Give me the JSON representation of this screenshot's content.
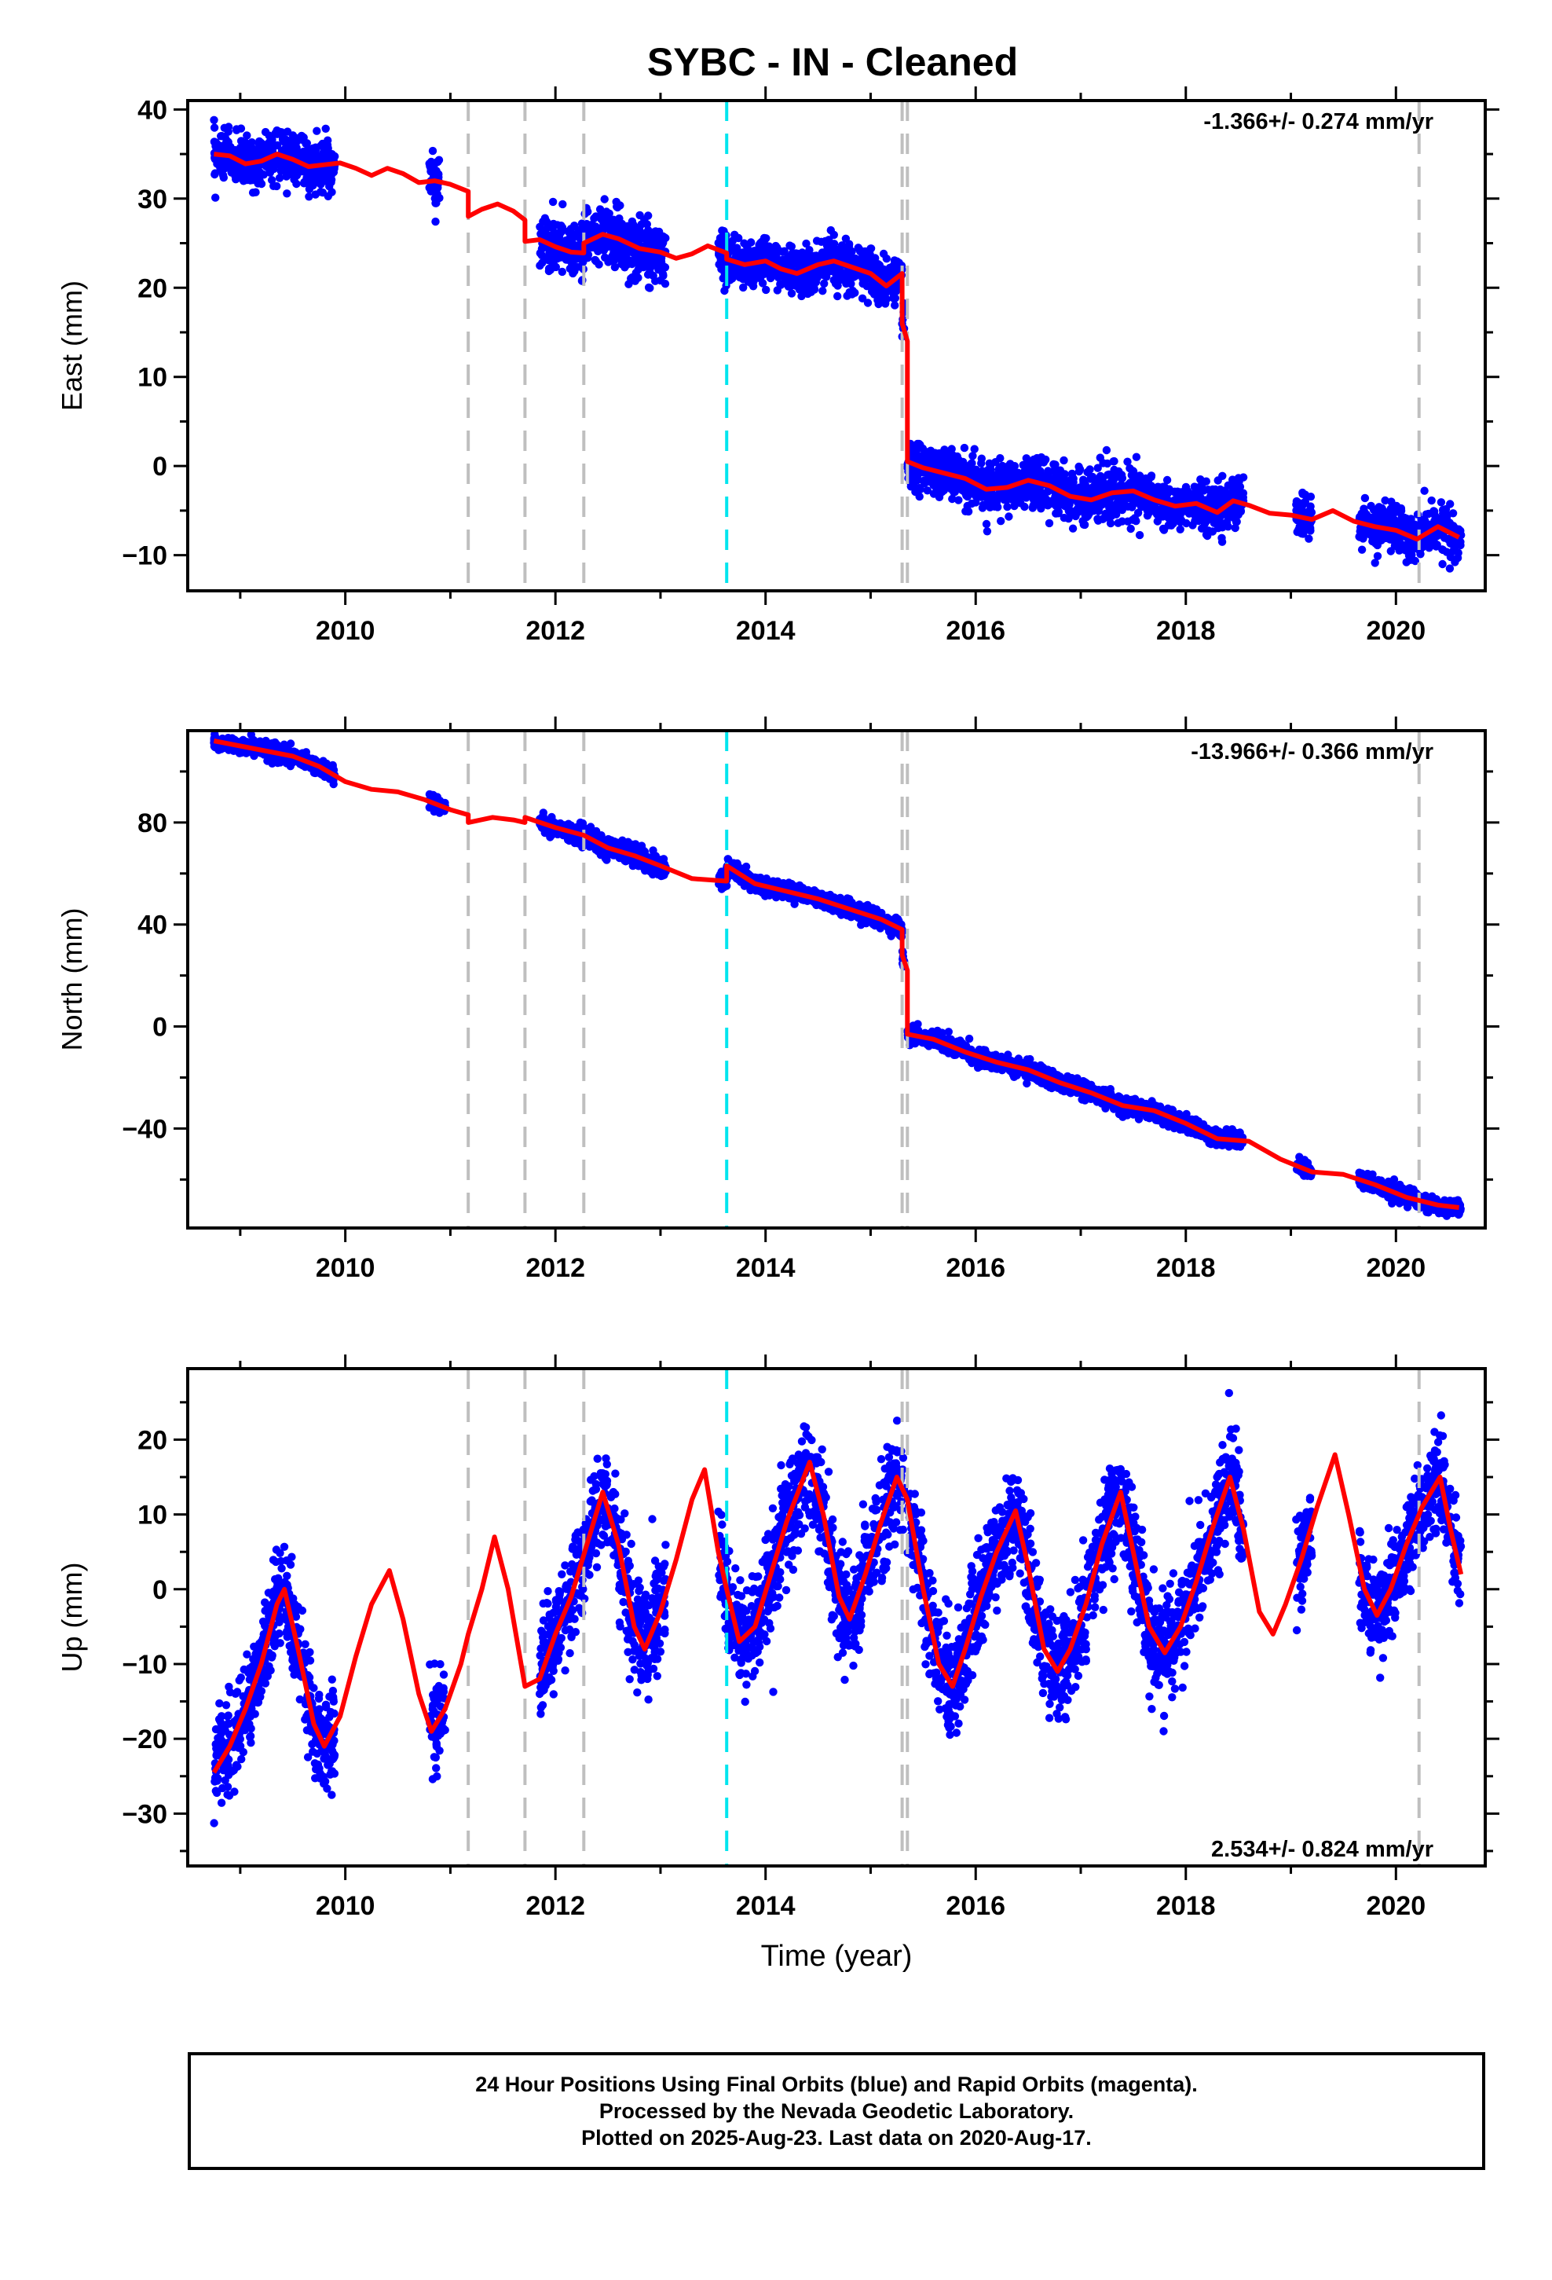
{
  "figure": {
    "title": "SYBC  - IN - Cleaned",
    "xlabel": "Time (year)",
    "colors": {
      "data": "#0000ff",
      "model": "#ff0000",
      "break_gray": "#bfbfbf",
      "break_cyan": "#00e5ee"
    }
  },
  "chart_data": [
    {
      "type": "scatter",
      "name_panel": "east",
      "ylabel": "East (mm)",
      "ylim": [
        -14,
        41
      ],
      "xlim": [
        2008.5,
        2020.85
      ],
      "yticks": [
        -10,
        0,
        10,
        20,
        30,
        40
      ],
      "xticks": [
        2010,
        2012,
        2014,
        2016,
        2018,
        2020
      ],
      "rate_label": "-1.366+/- 0.274 mm/yr",
      "rate_position": "top-right",
      "breaks": [
        {
          "x": 2011.17,
          "color": "gray"
        },
        {
          "x": 2011.71,
          "color": "gray"
        },
        {
          "x": 2012.27,
          "color": "gray"
        },
        {
          "x": 2013.63,
          "color": "cyan"
        },
        {
          "x": 2015.3,
          "color": "gray"
        },
        {
          "x": 2015.35,
          "color": "gray"
        },
        {
          "x": 2020.22,
          "color": "gray"
        }
      ],
      "model": [
        [
          2008.75,
          35.0
        ],
        [
          2008.9,
          34.8
        ],
        [
          2009.05,
          33.9
        ],
        [
          2009.2,
          34.2
        ],
        [
          2009.35,
          35.0
        ],
        [
          2009.5,
          34.4
        ],
        [
          2009.65,
          33.6
        ],
        [
          2009.8,
          33.8
        ],
        [
          2009.95,
          34.0
        ],
        [
          2010.1,
          33.4
        ],
        [
          2010.25,
          32.6
        ],
        [
          2010.4,
          33.4
        ],
        [
          2010.55,
          32.8
        ],
        [
          2010.7,
          31.8
        ],
        [
          2010.85,
          32.0
        ],
        [
          2011.0,
          31.6
        ],
        [
          2011.17,
          30.8
        ],
        [
          2011.17,
          28.0
        ],
        [
          2011.3,
          28.8
        ],
        [
          2011.45,
          29.4
        ],
        [
          2011.6,
          28.6
        ],
        [
          2011.71,
          27.6
        ],
        [
          2011.71,
          25.2
        ],
        [
          2011.85,
          25.4
        ],
        [
          2012.0,
          24.6
        ],
        [
          2012.15,
          24.0
        ],
        [
          2012.27,
          23.9
        ],
        [
          2012.27,
          25.0
        ],
        [
          2012.45,
          26.0
        ],
        [
          2012.6,
          25.5
        ],
        [
          2012.8,
          24.4
        ],
        [
          2013.0,
          24.0
        ],
        [
          2013.15,
          23.3
        ],
        [
          2013.3,
          23.8
        ],
        [
          2013.45,
          24.7
        ],
        [
          2013.63,
          23.9
        ],
        [
          2013.63,
          23.2
        ],
        [
          2013.8,
          22.6
        ],
        [
          2014.0,
          23.0
        ],
        [
          2014.15,
          22.1
        ],
        [
          2014.3,
          21.6
        ],
        [
          2014.5,
          22.6
        ],
        [
          2014.65,
          23.0
        ],
        [
          2014.8,
          22.4
        ],
        [
          2015.0,
          21.6
        ],
        [
          2015.15,
          20.2
        ],
        [
          2015.3,
          21.6
        ],
        [
          2015.3,
          16.0
        ],
        [
          2015.35,
          14.0
        ],
        [
          2015.35,
          0.5
        ],
        [
          2015.5,
          -0.2
        ],
        [
          2015.7,
          -0.8
        ],
        [
          2015.9,
          -1.4
        ],
        [
          2016.1,
          -2.6
        ],
        [
          2016.3,
          -2.4
        ],
        [
          2016.5,
          -1.6
        ],
        [
          2016.7,
          -2.2
        ],
        [
          2016.9,
          -3.4
        ],
        [
          2017.1,
          -3.8
        ],
        [
          2017.3,
          -3.0
        ],
        [
          2017.5,
          -2.8
        ],
        [
          2017.7,
          -3.8
        ],
        [
          2017.9,
          -4.5
        ],
        [
          2018.1,
          -4.2
        ],
        [
          2018.3,
          -5.2
        ],
        [
          2018.45,
          -3.9
        ],
        [
          2018.6,
          -4.4
        ],
        [
          2018.8,
          -5.3
        ],
        [
          2019.0,
          -5.5
        ],
        [
          2019.2,
          -6.0
        ],
        [
          2019.4,
          -5.0
        ],
        [
          2019.6,
          -6.2
        ],
        [
          2019.8,
          -6.8
        ],
        [
          2020.0,
          -7.2
        ],
        [
          2020.2,
          -8.2
        ],
        [
          2020.4,
          -6.8
        ],
        [
          2020.6,
          -8.0
        ]
      ],
      "observations": [
        {
          "start": 2008.75,
          "end": 2009.9,
          "spread": 1.4
        },
        {
          "start": 2010.8,
          "end": 2010.9,
          "spread": 1.6
        },
        {
          "start": 2011.85,
          "end": 2013.05,
          "spread": 1.6
        },
        {
          "start": 2013.55,
          "end": 2015.32,
          "spread": 1.3
        },
        {
          "start": 2015.35,
          "end": 2018.55,
          "spread": 1.4
        },
        {
          "start": 2019.05,
          "end": 2019.2,
          "spread": 1.2
        },
        {
          "start": 2019.65,
          "end": 2020.62,
          "spread": 1.3
        }
      ]
    },
    {
      "type": "scatter",
      "name_panel": "north",
      "ylabel": "North (mm)",
      "ylim": [
        -79,
        116
      ],
      "xlim": [
        2008.5,
        2020.85
      ],
      "yticks": [
        -40,
        0,
        40,
        80
      ],
      "xticks": [
        2010,
        2012,
        2014,
        2016,
        2018,
        2020
      ],
      "rate_label": "-13.966+/- 0.366 mm/yr",
      "rate_position": "top-right",
      "breaks": [
        {
          "x": 2011.17,
          "color": "gray"
        },
        {
          "x": 2011.71,
          "color": "gray"
        },
        {
          "x": 2012.27,
          "color": "gray"
        },
        {
          "x": 2013.63,
          "color": "cyan"
        },
        {
          "x": 2015.3,
          "color": "gray"
        },
        {
          "x": 2015.35,
          "color": "gray"
        },
        {
          "x": 2020.22,
          "color": "gray"
        }
      ],
      "model": [
        [
          2008.75,
          112
        ],
        [
          2009.0,
          110
        ],
        [
          2009.25,
          108
        ],
        [
          2009.5,
          106
        ],
        [
          2009.75,
          102
        ],
        [
          2010.0,
          96
        ],
        [
          2010.25,
          93
        ],
        [
          2010.5,
          92
        ],
        [
          2010.75,
          89
        ],
        [
          2011.0,
          85
        ],
        [
          2011.17,
          83
        ],
        [
          2011.17,
          80
        ],
        [
          2011.4,
          82
        ],
        [
          2011.6,
          81
        ],
        [
          2011.71,
          80
        ],
        [
          2011.71,
          82
        ],
        [
          2012.0,
          78
        ],
        [
          2012.27,
          75
        ],
        [
          2012.5,
          70
        ],
        [
          2012.75,
          67
        ],
        [
          2013.0,
          63
        ],
        [
          2013.3,
          58
        ],
        [
          2013.63,
          57
        ],
        [
          2013.63,
          63
        ],
        [
          2013.9,
          56
        ],
        [
          2014.2,
          53
        ],
        [
          2014.5,
          50
        ],
        [
          2014.8,
          46
        ],
        [
          2015.1,
          42
        ],
        [
          2015.3,
          38
        ],
        [
          2015.3,
          28
        ],
        [
          2015.35,
          22
        ],
        [
          2015.35,
          -3
        ],
        [
          2015.6,
          -5
        ],
        [
          2015.9,
          -10
        ],
        [
          2016.2,
          -14
        ],
        [
          2016.5,
          -17
        ],
        [
          2016.8,
          -22
        ],
        [
          2017.1,
          -26
        ],
        [
          2017.4,
          -31
        ],
        [
          2017.7,
          -33
        ],
        [
          2018.0,
          -38
        ],
        [
          2018.3,
          -44
        ],
        [
          2018.6,
          -45
        ],
        [
          2018.9,
          -52
        ],
        [
          2019.2,
          -57
        ],
        [
          2019.5,
          -58
        ],
        [
          2019.8,
          -62
        ],
        [
          2020.1,
          -67
        ],
        [
          2020.4,
          -70
        ],
        [
          2020.6,
          -71
        ]
      ],
      "observations": [
        {
          "start": 2008.75,
          "end": 2009.9,
          "spread": 1.6
        },
        {
          "start": 2010.8,
          "end": 2010.95,
          "spread": 1.5
        },
        {
          "start": 2011.85,
          "end": 2013.05,
          "spread": 1.8
        },
        {
          "start": 2013.55,
          "end": 2015.32,
          "spread": 1.6
        },
        {
          "start": 2015.35,
          "end": 2018.55,
          "spread": 1.6
        },
        {
          "start": 2019.05,
          "end": 2019.2,
          "spread": 1.5
        },
        {
          "start": 2019.65,
          "end": 2020.62,
          "spread": 1.6
        }
      ]
    },
    {
      "type": "scatter",
      "name_panel": "up",
      "ylabel": "Up (mm)",
      "ylim": [
        -37,
        29.5
      ],
      "xlim": [
        2008.5,
        2020.85
      ],
      "yticks": [
        -30,
        -20,
        -10,
        0,
        10,
        20
      ],
      "xticks": [
        2010,
        2012,
        2014,
        2016,
        2018,
        2020
      ],
      "rate_label": "2.534+/- 0.824 mm/yr",
      "rate_position": "bottom-right",
      "breaks": [
        {
          "x": 2011.17,
          "color": "gray"
        },
        {
          "x": 2011.71,
          "color": "gray"
        },
        {
          "x": 2012.27,
          "color": "gray"
        },
        {
          "x": 2013.63,
          "color": "cyan"
        },
        {
          "x": 2015.3,
          "color": "gray"
        },
        {
          "x": 2015.35,
          "color": "gray"
        },
        {
          "x": 2020.22,
          "color": "gray"
        }
      ],
      "model": [
        [
          2008.75,
          -24.5
        ],
        [
          2008.9,
          -21
        ],
        [
          2009.05,
          -16
        ],
        [
          2009.2,
          -10
        ],
        [
          2009.35,
          -2
        ],
        [
          2009.42,
          0
        ],
        [
          2009.55,
          -8
        ],
        [
          2009.7,
          -18
        ],
        [
          2009.8,
          -21
        ],
        [
          2009.95,
          -17
        ],
        [
          2010.1,
          -9
        ],
        [
          2010.25,
          -2
        ],
        [
          2010.42,
          2.5
        ],
        [
          2010.55,
          -4
        ],
        [
          2010.7,
          -14
        ],
        [
          2010.82,
          -19
        ],
        [
          2010.95,
          -16
        ],
        [
          2011.1,
          -10
        ],
        [
          2011.17,
          -6
        ],
        [
          2011.3,
          0
        ],
        [
          2011.42,
          7
        ],
        [
          2011.55,
          0
        ],
        [
          2011.71,
          -13
        ],
        [
          2011.85,
          -12
        ],
        [
          2012.0,
          -6
        ],
        [
          2012.15,
          -1
        ],
        [
          2012.3,
          6
        ],
        [
          2012.45,
          13
        ],
        [
          2012.6,
          6
        ],
        [
          2012.75,
          -5
        ],
        [
          2012.85,
          -8
        ],
        [
          2013.0,
          -3
        ],
        [
          2013.15,
          4
        ],
        [
          2013.3,
          12
        ],
        [
          2013.42,
          16
        ],
        [
          2013.55,
          5
        ],
        [
          2013.63,
          0
        ],
        [
          2013.75,
          -7
        ],
        [
          2013.9,
          -5
        ],
        [
          2014.05,
          2
        ],
        [
          2014.2,
          9
        ],
        [
          2014.42,
          17
        ],
        [
          2014.55,
          10
        ],
        [
          2014.7,
          -1
        ],
        [
          2014.8,
          -4
        ],
        [
          2014.95,
          2
        ],
        [
          2015.1,
          9
        ],
        [
          2015.25,
          15
        ],
        [
          2015.35,
          12
        ],
        [
          2015.5,
          0
        ],
        [
          2015.65,
          -10
        ],
        [
          2015.78,
          -13
        ],
        [
          2015.9,
          -8
        ],
        [
          2016.05,
          -1
        ],
        [
          2016.2,
          5
        ],
        [
          2016.38,
          10.5
        ],
        [
          2016.5,
          3
        ],
        [
          2016.65,
          -8
        ],
        [
          2016.78,
          -11
        ],
        [
          2016.9,
          -8
        ],
        [
          2017.05,
          -2
        ],
        [
          2017.2,
          6
        ],
        [
          2017.38,
          13
        ],
        [
          2017.5,
          5
        ],
        [
          2017.65,
          -5
        ],
        [
          2017.8,
          -8.5
        ],
        [
          2017.95,
          -5
        ],
        [
          2018.1,
          1
        ],
        [
          2018.25,
          8
        ],
        [
          2018.42,
          15
        ],
        [
          2018.55,
          8
        ],
        [
          2018.7,
          -3
        ],
        [
          2018.83,
          -6
        ],
        [
          2018.95,
          -2
        ],
        [
          2019.1,
          4
        ],
        [
          2019.25,
          11
        ],
        [
          2019.42,
          18
        ],
        [
          2019.55,
          10
        ],
        [
          2019.7,
          0
        ],
        [
          2019.82,
          -3.5
        ],
        [
          2019.95,
          0
        ],
        [
          2020.1,
          6
        ],
        [
          2020.25,
          11
        ],
        [
          2020.42,
          15
        ],
        [
          2020.52,
          8
        ],
        [
          2020.62,
          2
        ]
      ],
      "observations": [
        {
          "start": 2008.75,
          "end": 2009.9,
          "spread": 3.0
        },
        {
          "start": 2010.8,
          "end": 2010.95,
          "spread": 3.0
        },
        {
          "start": 2011.85,
          "end": 2013.05,
          "spread": 3.5
        },
        {
          "start": 2013.55,
          "end": 2015.32,
          "spread": 3.5
        },
        {
          "start": 2015.35,
          "end": 2018.55,
          "spread": 3.5
        },
        {
          "start": 2019.05,
          "end": 2019.2,
          "spread": 3.0
        },
        {
          "start": 2019.65,
          "end": 2020.62,
          "spread": 3.2
        }
      ]
    }
  ],
  "footer": {
    "line1": "24 Hour Positions Using Final Orbits (blue) and Rapid Orbits (magenta).",
    "line2": "Processed by the Nevada Geodetic Laboratory.",
    "line3": "Plotted on 2025-Aug-23. Last data on 2020-Aug-17."
  }
}
